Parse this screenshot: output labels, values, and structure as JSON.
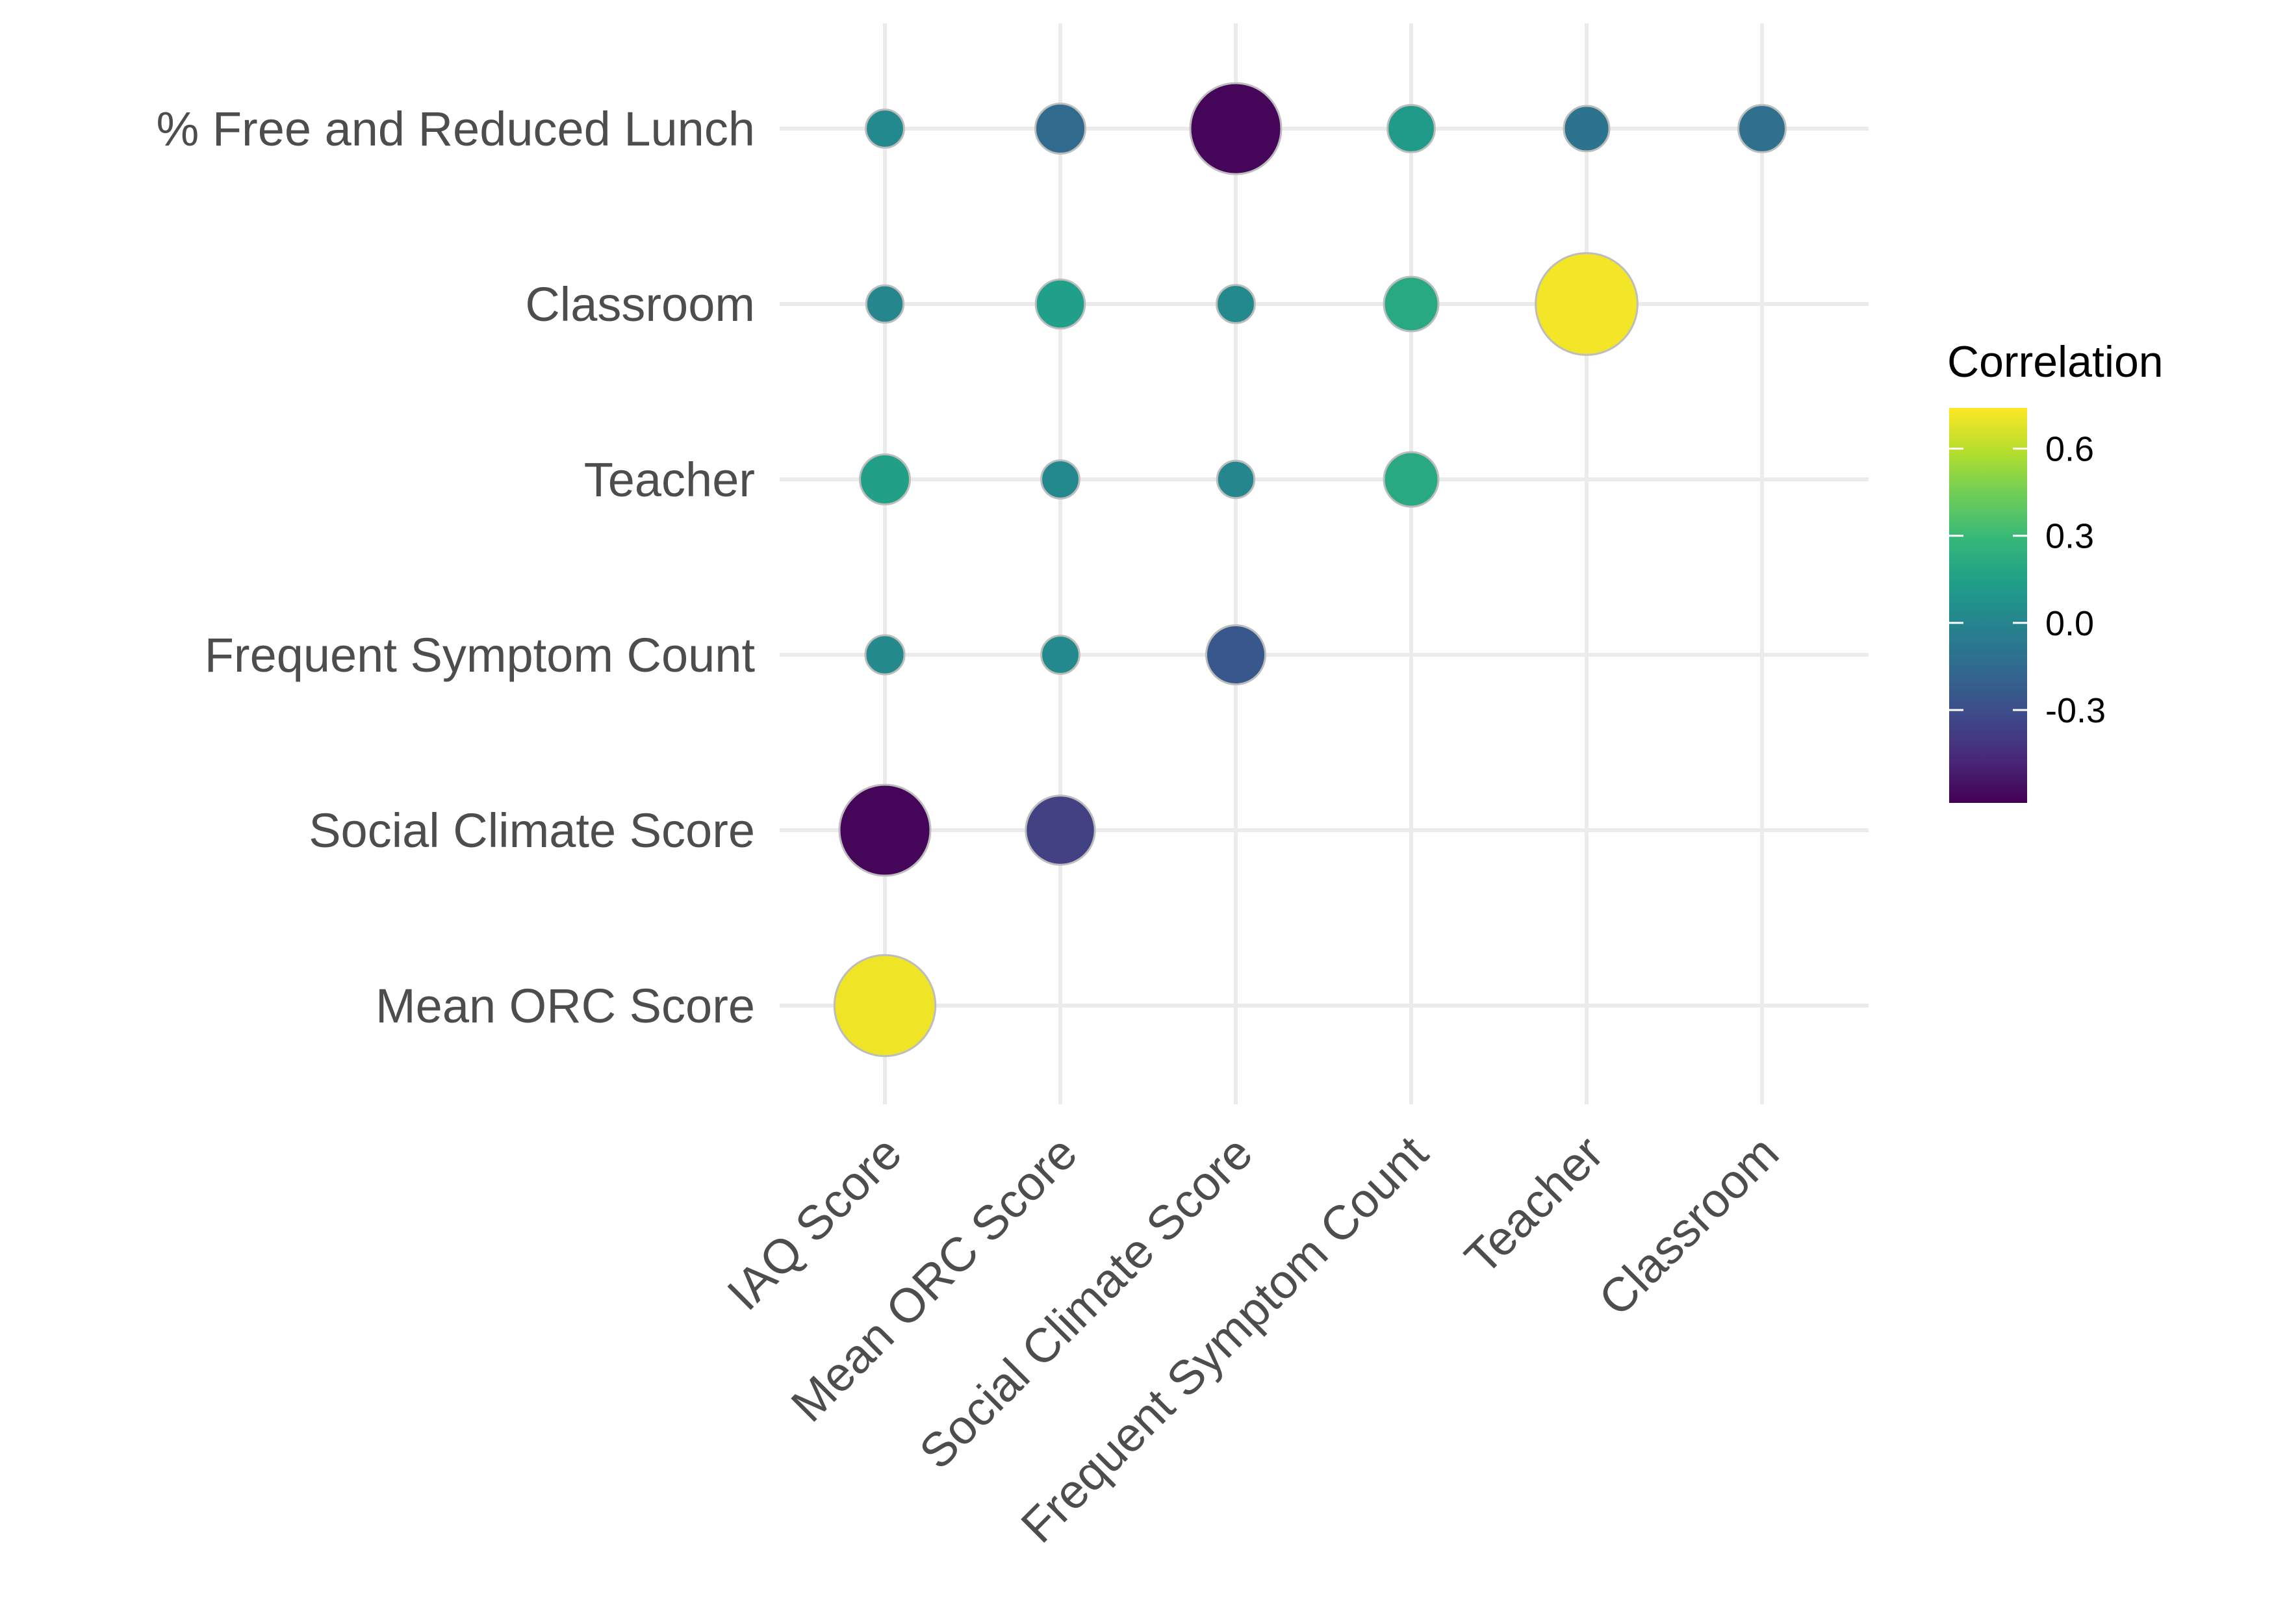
{
  "chart_data": {
    "type": "scatter",
    "subtype": "bubble-correlation-matrix",
    "title": "",
    "xlabel": "",
    "ylabel": "",
    "x_categories": [
      "IAQ Score",
      "Mean ORC Score",
      "Social Climate Score",
      "Frequent Symptom Count",
      "Teacher",
      "Classroom"
    ],
    "y_categories": [
      "% Free and Reduced Lunch",
      "Classroom",
      "Teacher",
      "Frequent Symptom Count",
      "Social Climate Score",
      "Mean ORC Score"
    ],
    "legend": {
      "title": "Correlation",
      "placement": "right",
      "ticks": [
        0.6,
        0.3,
        0.0,
        -0.3
      ],
      "tick_labels": [
        "0.6",
        "0.3",
        "0.0",
        "-0.3"
      ],
      "range": [
        -0.62,
        0.74
      ],
      "palette": [
        "#440154",
        "#482878",
        "#3E4A89",
        "#31688E",
        "#26828E",
        "#1F9E89",
        "#35B779",
        "#6DCD59",
        "#B4DE2C",
        "#FDE725"
      ]
    },
    "grid": true,
    "points": [
      {
        "x": "IAQ Score",
        "y": "% Free and Reduced Lunch",
        "value": 0.02
      },
      {
        "x": "Mean ORC Score",
        "y": "% Free and Reduced Lunch",
        "value": -0.15
      },
      {
        "x": "Social Climate Score",
        "y": "% Free and Reduced Lunch",
        "value": -0.6
      },
      {
        "x": "Frequent Symptom Count",
        "y": "% Free and Reduced Lunch",
        "value": 0.12
      },
      {
        "x": "Teacher",
        "y": "% Free and Reduced Lunch",
        "value": -0.1
      },
      {
        "x": "Classroom",
        "y": "% Free and Reduced Lunch",
        "value": -0.12
      },
      {
        "x": "IAQ Score",
        "y": "Classroom",
        "value": 0.01
      },
      {
        "x": "Mean ORC Score",
        "y": "Classroom",
        "value": 0.14
      },
      {
        "x": "Social Climate Score",
        "y": "Classroom",
        "value": 0.02
      },
      {
        "x": "Frequent Symptom Count",
        "y": "Classroom",
        "value": 0.2
      },
      {
        "x": "Teacher",
        "y": "Classroom",
        "value": 0.72
      },
      {
        "x": "IAQ Score",
        "y": "Teacher",
        "value": 0.15
      },
      {
        "x": "Mean ORC Score",
        "y": "Teacher",
        "value": 0.02
      },
      {
        "x": "Social Climate Score",
        "y": "Teacher",
        "value": 0.01
      },
      {
        "x": "Frequent Symptom Count",
        "y": "Teacher",
        "value": 0.2
      },
      {
        "x": "IAQ Score",
        "y": "Frequent Symptom Count",
        "value": 0.03
      },
      {
        "x": "Mean ORC Score",
        "y": "Frequent Symptom Count",
        "value": 0.02
      },
      {
        "x": "Social Climate Score",
        "y": "Frequent Symptom Count",
        "value": -0.25
      },
      {
        "x": "IAQ Score",
        "y": "Social Climate Score",
        "value": -0.6
      },
      {
        "x": "Mean ORC Score",
        "y": "Social Climate Score",
        "value": -0.36
      },
      {
        "x": "IAQ Score",
        "y": "Mean ORC Score",
        "value": 0.71
      }
    ]
  }
}
